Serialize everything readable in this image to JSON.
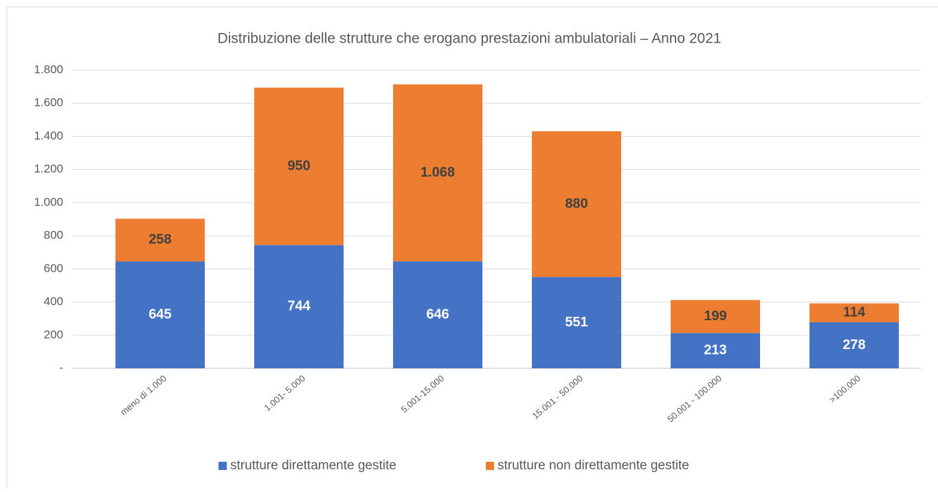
{
  "chart_data": {
    "type": "stacked_bar",
    "title": "Distribuzione delle strutture che erogano prestazioni ambulatoriali – Anno 2021",
    "categories": [
      "meno di 1.000",
      "1.001- 5.000",
      "5.001-15.000",
      "15.001 - 50.000",
      "50.001 - 100.000",
      ">100.000"
    ],
    "series": [
      {
        "name": "strutture direttamente gestite",
        "color": "#4472c4",
        "values": [
          645,
          744,
          646,
          551,
          213,
          278
        ]
      },
      {
        "name": "strutture non direttamente gestite",
        "color": "#ed7d31",
        "values": [
          258,
          950,
          1068,
          880,
          199,
          114
        ],
        "value_labels": [
          "258",
          "950",
          "1.068",
          "880",
          "199",
          "114"
        ]
      }
    ],
    "ylim": [
      0,
      1800
    ],
    "yticks": [
      {
        "value": 0,
        "label": "-"
      },
      200,
      400,
      600,
      800,
      {
        "value": 1000,
        "label": "1.000"
      },
      {
        "value": 1200,
        "label": "1.200"
      },
      {
        "value": 1400,
        "label": "1.400"
      },
      {
        "value": 1600,
        "label": "1.600"
      },
      {
        "value": 1800,
        "label": "1.800"
      }
    ],
    "grid": true,
    "legend": "bottom"
  }
}
